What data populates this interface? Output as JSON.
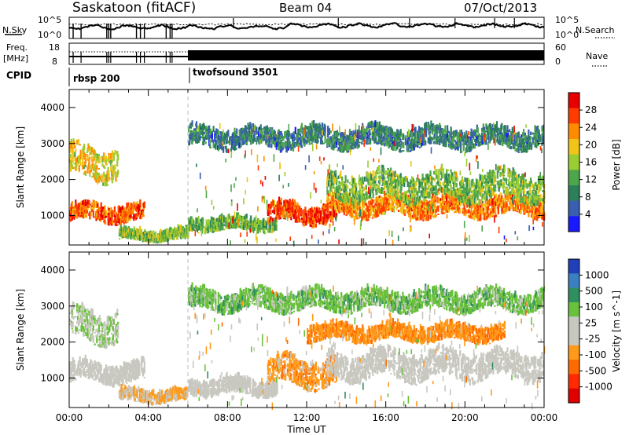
{
  "header": {
    "station": "Saskatoon (fitACF)",
    "beam": "Beam 04",
    "date": "07/Oct/2013"
  },
  "strip_labels": {
    "nsky": "N.Sky",
    "nsearch": "N.Search",
    "freq": "Freq.",
    "freq_unit": "[MHz]",
    "nave": "Nave",
    "cpid": "CPID",
    "noise_tick_top": "10^5",
    "noise_tick_bottom": "10^0",
    "freq_tick_top": "18",
    "freq_tick_bottom": "8",
    "nave_tick_top": "60",
    "nave_tick_bottom": "0"
  },
  "cpid_programs": [
    {
      "name": "rbsp 200",
      "start_hour": 0,
      "end_hour": 6
    },
    {
      "name": "twofsound 3501",
      "start_hour": 6,
      "end_hour": 24
    }
  ],
  "colors": {
    "power": [
      "#1919ff",
      "#3a5fb0",
      "#2d7f5a",
      "#4ea64a",
      "#9acd32",
      "#f0c419",
      "#ff8c00",
      "#ff3b00",
      "#e60000"
    ],
    "velocity": [
      "#2140b8",
      "#3a7fc0",
      "#2f8f5f",
      "#6ac13c",
      "#c8c8c0",
      "#c8c8c0",
      "#ff9a1a",
      "#ff6a00",
      "#ff2a00",
      "#e00000"
    ]
  },
  "chart_data": [
    {
      "type": "heatmap",
      "title": "",
      "ylabel": "Slant Range [km]",
      "xlabel": "",
      "x_range_hours": [
        0,
        24
      ],
      "y_range_km": [
        180,
        4500
      ],
      "yticks": [
        "1000",
        "2000",
        "3000",
        "4000"
      ],
      "colorbar": {
        "label": "Power [dB]",
        "ticks": [
          "4",
          "8",
          "12",
          "16",
          "20",
          "24",
          "28"
        ],
        "range": [
          0,
          30
        ]
      },
      "echo_bands": [
        {
          "start_h": 0.0,
          "end_h": 3.8,
          "center_km": 1000,
          "width_km": 400,
          "value": 24
        },
        {
          "start_h": 0.0,
          "end_h": 2.5,
          "center_km": 2400,
          "width_km": 800,
          "value": 18
        },
        {
          "start_h": 2.5,
          "end_h": 6.0,
          "center_km": 400,
          "width_km": 250,
          "value": 14
        },
        {
          "start_h": 6.0,
          "end_h": 10.5,
          "center_km": 700,
          "width_km": 300,
          "value": 12
        },
        {
          "start_h": 10.0,
          "end_h": 13.5,
          "center_km": 1000,
          "width_km": 500,
          "value": 26
        },
        {
          "start_h": 13.0,
          "end_h": 24.0,
          "center_km": 1200,
          "width_km": 500,
          "value": 22
        },
        {
          "start_h": 13.0,
          "end_h": 24.0,
          "center_km": 1750,
          "width_km": 700,
          "value": 13
        },
        {
          "start_h": 6.0,
          "end_h": 24.0,
          "center_km": 3100,
          "width_km": 500,
          "value": 8
        }
      ]
    },
    {
      "type": "heatmap",
      "title": "",
      "ylabel": "Slant Range [km]",
      "xlabel": "Time UT",
      "x_range_hours": [
        0,
        24
      ],
      "y_range_km": [
        180,
        4500
      ],
      "xticks": [
        "00:00",
        "04:00",
        "08:00",
        "12:00",
        "16:00",
        "20:00",
        "00:00"
      ],
      "yticks": [
        "1000",
        "2000",
        "3000",
        "4000"
      ],
      "colorbar": {
        "label": "Velocity [m s^-1]",
        "ticks": [
          "1000",
          "500",
          "100",
          "25",
          "-25",
          "-100",
          "-500",
          "-1000"
        ],
        "range": [
          -1000,
          1000
        ]
      },
      "echo_bands": [
        {
          "start_h": 0.0,
          "end_h": 3.8,
          "center_km": 1100,
          "width_km": 500,
          "value": 0
        },
        {
          "start_h": 0.0,
          "end_h": 2.5,
          "center_km": 2400,
          "width_km": 800,
          "value": 150
        },
        {
          "start_h": 2.5,
          "end_h": 6.0,
          "center_km": 450,
          "width_km": 300,
          "value": -200
        },
        {
          "start_h": 6.0,
          "end_h": 10.5,
          "center_km": 700,
          "width_km": 400,
          "value": 0
        },
        {
          "start_h": 10.0,
          "end_h": 13.5,
          "center_km": 1100,
          "width_km": 700,
          "value": -300
        },
        {
          "start_h": 12.0,
          "end_h": 22.0,
          "center_km": 2200,
          "width_km": 400,
          "value": -350
        },
        {
          "start_h": 13.0,
          "end_h": 24.0,
          "center_km": 1300,
          "width_km": 700,
          "value": 0
        },
        {
          "start_h": 6.0,
          "end_h": 24.0,
          "center_km": 3100,
          "width_km": 500,
          "value": 300
        }
      ]
    }
  ]
}
